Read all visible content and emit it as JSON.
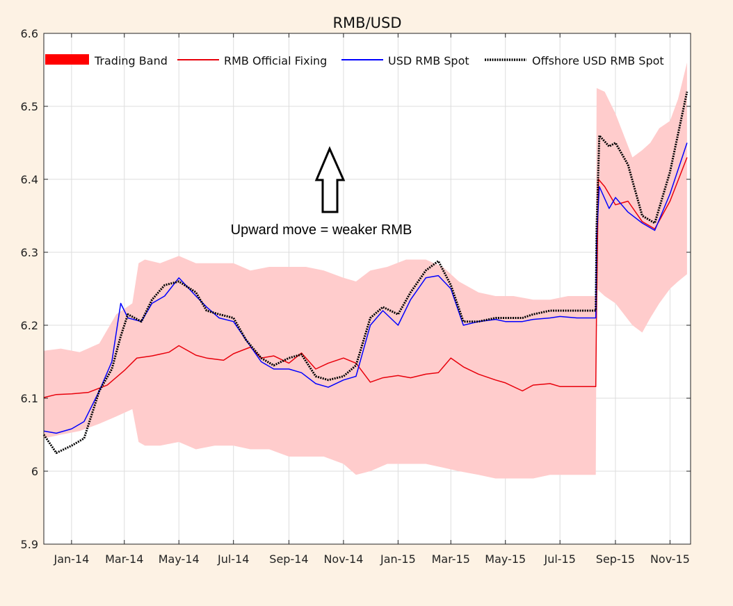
{
  "chart_data": {
    "type": "line",
    "title": "RMB/USD",
    "xlabel": "",
    "ylabel": "",
    "ylim": [
      5.9,
      6.6
    ],
    "yticks": [
      "5.9",
      "6",
      "6.1",
      "6.2",
      "6.3",
      "6.4",
      "6.5",
      "6.6"
    ],
    "xlim": [
      "2013-12-01",
      "2015-11-24"
    ],
    "xticks": [
      {
        "date": "2014-01-01",
        "label": "Jan-14"
      },
      {
        "date": "2014-03-01",
        "label": "Mar-14"
      },
      {
        "date": "2014-05-01",
        "label": "May-14"
      },
      {
        "date": "2014-07-01",
        "label": "Jul-14"
      },
      {
        "date": "2014-09-01",
        "label": "Sep-14"
      },
      {
        "date": "2014-11-01",
        "label": "Nov-14"
      },
      {
        "date": "2015-01-01",
        "label": "Jan-15"
      },
      {
        "date": "2015-03-01",
        "label": "Mar-15"
      },
      {
        "date": "2015-05-01",
        "label": "May-15"
      },
      {
        "date": "2015-07-01",
        "label": "Jul-15"
      },
      {
        "date": "2015-09-01",
        "label": "Sep-15"
      },
      {
        "date": "2015-11-01",
        "label": "Nov-15"
      }
    ],
    "grid": true,
    "legend_position": "top",
    "annotation": "Upward move = weaker RMB",
    "band": {
      "name": "Trading Band",
      "color": "#ffcccc",
      "legend_color": "#ff0000",
      "x": [
        "2013-12-01",
        "2013-12-20",
        "2014-01-10",
        "2014-02-01",
        "2014-02-20",
        "2014-03-10",
        "2014-03-17",
        "2014-03-24",
        "2014-04-10",
        "2014-05-01",
        "2014-05-20",
        "2014-06-10",
        "2014-07-01",
        "2014-07-20",
        "2014-08-10",
        "2014-09-01",
        "2014-09-20",
        "2014-10-10",
        "2014-11-01",
        "2014-11-15",
        "2014-12-01",
        "2014-12-20",
        "2015-01-10",
        "2015-02-01",
        "2015-02-20",
        "2015-03-10",
        "2015-04-01",
        "2015-04-20",
        "2015-05-10",
        "2015-06-01",
        "2015-06-20",
        "2015-07-10",
        "2015-08-10",
        "2015-08-11",
        "2015-08-20",
        "2015-09-01",
        "2015-09-20",
        "2015-10-01",
        "2015-10-10",
        "2015-10-20",
        "2015-11-01",
        "2015-11-10",
        "2015-11-20"
      ],
      "upper": [
        6.165,
        6.168,
        6.163,
        6.175,
        6.215,
        6.23,
        6.285,
        6.29,
        6.285,
        6.295,
        6.285,
        6.285,
        6.285,
        6.275,
        6.28,
        6.28,
        6.28,
        6.275,
        6.265,
        6.26,
        6.275,
        6.28,
        6.29,
        6.29,
        6.28,
        6.26,
        6.245,
        6.24,
        6.24,
        6.235,
        6.235,
        6.24,
        6.24,
        6.525,
        6.52,
        6.49,
        6.43,
        6.44,
        6.45,
        6.47,
        6.48,
        6.51,
        6.56
      ],
      "lower": [
        6.045,
        6.05,
        6.055,
        6.065,
        6.075,
        6.085,
        6.04,
        6.035,
        6.035,
        6.04,
        6.03,
        6.035,
        6.035,
        6.03,
        6.03,
        6.02,
        6.02,
        6.02,
        6.01,
        5.995,
        6.0,
        6.01,
        6.01,
        6.01,
        6.005,
        6.0,
        5.995,
        5.99,
        5.99,
        5.99,
        5.995,
        5.995,
        5.995,
        6.25,
        6.24,
        6.23,
        6.2,
        6.19,
        6.21,
        6.23,
        6.25,
        6.26,
        6.27
      ]
    },
    "series": [
      {
        "name": "RMB Official Fixing",
        "color": "#e8000b",
        "style": "solid",
        "x": [
          "2013-12-01",
          "2013-12-15",
          "2014-01-01",
          "2014-01-20",
          "2014-02-10",
          "2014-03-01",
          "2014-03-15",
          "2014-04-01",
          "2014-04-20",
          "2014-05-01",
          "2014-05-20",
          "2014-06-01",
          "2014-06-20",
          "2014-07-01",
          "2014-07-20",
          "2014-08-01",
          "2014-08-15",
          "2014-09-01",
          "2014-09-15",
          "2014-10-01",
          "2014-10-15",
          "2014-11-01",
          "2014-11-15",
          "2014-12-01",
          "2014-12-15",
          "2015-01-01",
          "2015-01-15",
          "2015-02-01",
          "2015-02-15",
          "2015-03-01",
          "2015-03-15",
          "2015-04-01",
          "2015-04-20",
          "2015-05-01",
          "2015-05-20",
          "2015-06-01",
          "2015-06-20",
          "2015-07-01",
          "2015-07-20",
          "2015-08-10",
          "2015-08-11",
          "2015-08-13",
          "2015-08-20",
          "2015-09-01",
          "2015-09-15",
          "2015-10-01",
          "2015-10-15",
          "2015-11-01",
          "2015-11-20"
        ],
        "y": [
          6.101,
          6.105,
          6.106,
          6.108,
          6.118,
          6.138,
          6.155,
          6.158,
          6.163,
          6.172,
          6.159,
          6.155,
          6.152,
          6.161,
          6.17,
          6.155,
          6.158,
          6.148,
          6.162,
          6.14,
          6.148,
          6.155,
          6.148,
          6.122,
          6.128,
          6.131,
          6.128,
          6.133,
          6.135,
          6.155,
          6.143,
          6.133,
          6.125,
          6.121,
          6.11,
          6.118,
          6.12,
          6.116,
          6.116,
          6.116,
          6.23,
          6.4,
          6.39,
          6.365,
          6.37,
          6.342,
          6.332,
          6.37,
          6.43
        ]
      },
      {
        "name": "USD RMB Spot",
        "color": "#0000ff",
        "style": "solid",
        "x": [
          "2013-12-01",
          "2013-12-15",
          "2014-01-01",
          "2014-01-15",
          "2014-02-01",
          "2014-02-15",
          "2014-02-25",
          "2014-03-05",
          "2014-03-20",
          "2014-04-01",
          "2014-04-15",
          "2014-05-01",
          "2014-05-20",
          "2014-06-01",
          "2014-06-15",
          "2014-07-01",
          "2014-07-15",
          "2014-08-01",
          "2014-08-15",
          "2014-09-01",
          "2014-09-15",
          "2014-10-01",
          "2014-10-15",
          "2014-11-01",
          "2014-11-15",
          "2014-12-01",
          "2014-12-15",
          "2015-01-01",
          "2015-01-15",
          "2015-02-01",
          "2015-02-15",
          "2015-03-01",
          "2015-03-15",
          "2015-04-01",
          "2015-04-20",
          "2015-05-01",
          "2015-05-20",
          "2015-06-01",
          "2015-06-20",
          "2015-07-01",
          "2015-07-20",
          "2015-08-10",
          "2015-08-11",
          "2015-08-14",
          "2015-08-25",
          "2015-09-01",
          "2015-09-15",
          "2015-10-01",
          "2015-10-15",
          "2015-11-01",
          "2015-11-20"
        ],
        "y": [
          6.055,
          6.052,
          6.058,
          6.068,
          6.11,
          6.15,
          6.23,
          6.21,
          6.205,
          6.23,
          6.24,
          6.265,
          6.24,
          6.225,
          6.21,
          6.205,
          6.18,
          6.15,
          6.14,
          6.14,
          6.135,
          6.12,
          6.115,
          6.125,
          6.13,
          6.2,
          6.22,
          6.2,
          6.235,
          6.265,
          6.268,
          6.25,
          6.2,
          6.205,
          6.208,
          6.205,
          6.205,
          6.208,
          6.21,
          6.212,
          6.21,
          6.21,
          6.32,
          6.39,
          6.36,
          6.375,
          6.355,
          6.34,
          6.33,
          6.38,
          6.45
        ]
      },
      {
        "name": "Offshore USD RMB Spot",
        "color": "#000000",
        "style": "dotted",
        "x": [
          "2013-12-01",
          "2013-12-15",
          "2014-01-01",
          "2014-01-15",
          "2014-02-01",
          "2014-02-15",
          "2014-02-25",
          "2014-03-05",
          "2014-03-20",
          "2014-04-01",
          "2014-04-15",
          "2014-05-01",
          "2014-05-20",
          "2014-06-01",
          "2014-06-15",
          "2014-07-01",
          "2014-07-15",
          "2014-08-01",
          "2014-08-15",
          "2014-09-01",
          "2014-09-15",
          "2014-10-01",
          "2014-10-15",
          "2014-11-01",
          "2014-11-15",
          "2014-12-01",
          "2014-12-15",
          "2015-01-01",
          "2015-01-15",
          "2015-02-01",
          "2015-02-15",
          "2015-03-01",
          "2015-03-15",
          "2015-04-01",
          "2015-04-20",
          "2015-05-01",
          "2015-05-20",
          "2015-06-01",
          "2015-06-20",
          "2015-07-01",
          "2015-07-20",
          "2015-08-10",
          "2015-08-11",
          "2015-08-14",
          "2015-08-25",
          "2015-09-01",
          "2015-09-15",
          "2015-10-01",
          "2015-10-15",
          "2015-11-01",
          "2015-11-20"
        ],
        "y": [
          6.05,
          6.025,
          6.035,
          6.045,
          6.11,
          6.14,
          6.185,
          6.215,
          6.205,
          6.235,
          6.255,
          6.26,
          6.245,
          6.22,
          6.215,
          6.21,
          6.18,
          6.155,
          6.145,
          6.155,
          6.16,
          6.13,
          6.125,
          6.13,
          6.145,
          6.21,
          6.225,
          6.215,
          6.245,
          6.275,
          6.288,
          6.255,
          6.205,
          6.205,
          6.21,
          6.21,
          6.21,
          6.215,
          6.22,
          6.22,
          6.22,
          6.22,
          6.335,
          6.46,
          6.445,
          6.45,
          6.42,
          6.35,
          6.34,
          6.41,
          6.52
        ]
      }
    ]
  }
}
